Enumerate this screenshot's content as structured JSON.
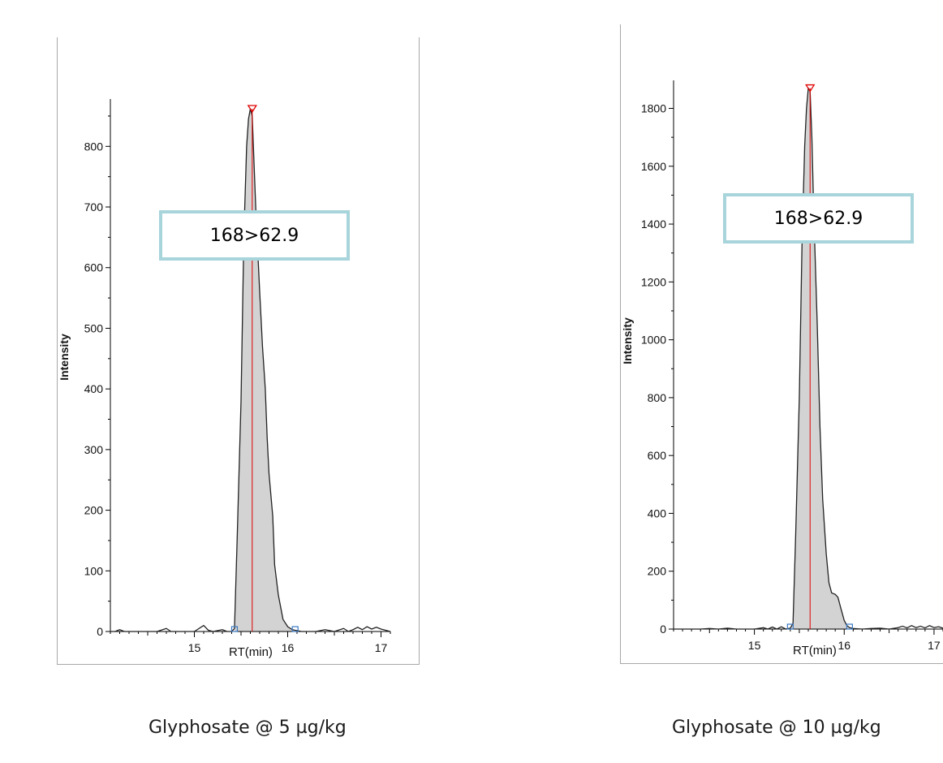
{
  "chart_data": [
    {
      "type": "area",
      "caption": "Glyphosate @ 5 µg/kg",
      "annotation": "168>62.9",
      "xlabel": "RT(min)",
      "ylabel": "Intensity",
      "xlim": [
        14.1,
        17.1
      ],
      "ylim": [
        0,
        870
      ],
      "x_ticks": [
        15,
        16,
        17
      ],
      "y_ticks": [
        0,
        100,
        200,
        300,
        400,
        500,
        600,
        700,
        800
      ],
      "peak_rt": 15.62,
      "peak_intensity": 862,
      "integration_start": 15.43,
      "integration_end": 16.08,
      "series": [
        {
          "x": [
            14.1,
            14.15,
            14.2,
            14.25,
            14.3,
            14.4,
            14.5,
            14.6,
            14.7,
            14.75,
            14.8,
            14.9,
            15.0,
            15.1,
            15.15,
            15.2,
            15.3,
            15.35,
            15.4,
            15.43,
            15.46,
            15.5,
            15.53,
            15.56,
            15.58,
            15.6,
            15.62,
            15.64,
            15.66,
            15.7,
            15.73,
            15.76,
            15.78,
            15.8,
            15.82,
            15.84,
            15.86,
            15.9,
            15.95,
            16.0,
            16.05,
            16.08,
            16.15,
            16.2,
            16.3,
            16.4,
            16.5,
            16.6,
            16.65,
            16.7,
            16.75,
            16.8,
            16.85,
            16.9,
            16.95,
            17.0,
            17.05,
            17.1
          ],
          "y": [
            0,
            0,
            3,
            0,
            0,
            0,
            0,
            0,
            5,
            0,
            0,
            0,
            0,
            10,
            2,
            0,
            3,
            0,
            0,
            5,
            160,
            380,
            650,
            800,
            845,
            862,
            850,
            770,
            690,
            560,
            470,
            400,
            320,
            260,
            225,
            190,
            110,
            60,
            20,
            8,
            3,
            2,
            0,
            0,
            0,
            3,
            0,
            5,
            0,
            3,
            7,
            3,
            8,
            4,
            7,
            4,
            2,
            0
          ]
        }
      ]
    },
    {
      "type": "area",
      "caption": "Glyphosate @ 10 µg/kg",
      "annotation": "168>62.9",
      "xlabel": "RT(min)",
      "ylabel": "Intensity",
      "xlim": [
        14.1,
        17.1
      ],
      "ylim": [
        0,
        1880
      ],
      "x_ticks": [
        15,
        16,
        17
      ],
      "y_ticks": [
        0,
        200,
        400,
        600,
        800,
        1000,
        1200,
        1400,
        1600,
        1800
      ],
      "peak_rt": 15.62,
      "peak_intensity": 1870,
      "integration_start": 15.4,
      "integration_end": 16.06,
      "series": [
        {
          "x": [
            14.1,
            14.2,
            14.3,
            14.4,
            14.5,
            14.6,
            14.7,
            14.8,
            14.9,
            15.0,
            15.1,
            15.15,
            15.2,
            15.25,
            15.3,
            15.35,
            15.4,
            15.43,
            15.46,
            15.5,
            15.53,
            15.56,
            15.58,
            15.6,
            15.62,
            15.64,
            15.66,
            15.7,
            15.73,
            15.76,
            15.8,
            15.83,
            15.86,
            15.9,
            15.93,
            15.96,
            16.0,
            16.03,
            16.06,
            16.1,
            16.2,
            16.3,
            16.4,
            16.5,
            16.6,
            16.65,
            16.7,
            16.75,
            16.8,
            16.85,
            16.9,
            16.95,
            17.0,
            17.05,
            17.1
          ],
          "y": [
            0,
            0,
            0,
            0,
            2,
            0,
            3,
            0,
            0,
            0,
            5,
            0,
            7,
            0,
            8,
            0,
            3,
            20,
            330,
            800,
            1330,
            1670,
            1800,
            1870,
            1860,
            1700,
            1450,
            1050,
            700,
            450,
            260,
            160,
            125,
            120,
            110,
            75,
            30,
            12,
            5,
            2,
            0,
            2,
            3,
            0,
            5,
            10,
            4,
            12,
            5,
            10,
            4,
            12,
            5,
            8,
            3
          ]
        }
      ]
    }
  ]
}
